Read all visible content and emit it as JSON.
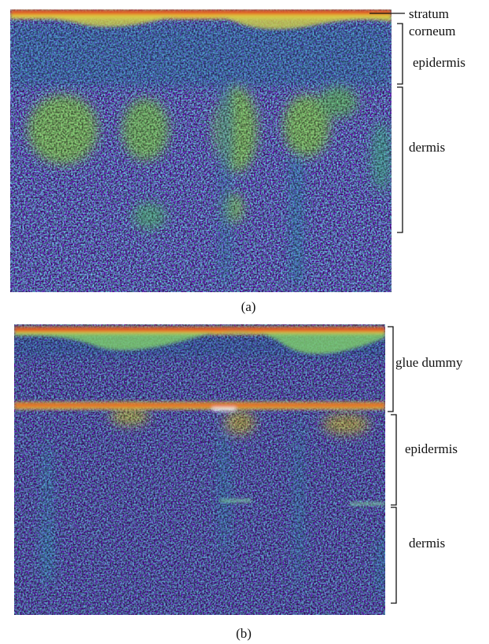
{
  "panels": [
    {
      "caption": "(a)",
      "labels": [
        "stratum corneum",
        "epidermis",
        "dermis"
      ]
    },
    {
      "caption": "(b)",
      "labels": [
        "glue dummy",
        "epidermis",
        "dermis"
      ]
    }
  ]
}
